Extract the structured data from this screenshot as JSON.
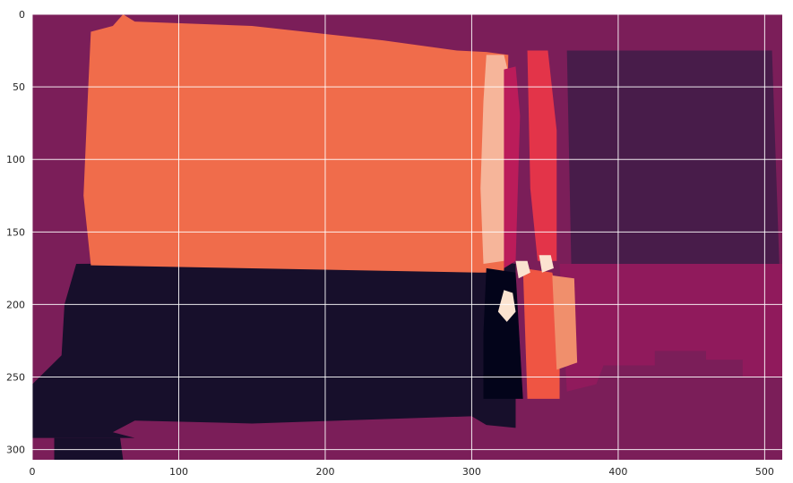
{
  "chart_data": {
    "type": "heatmap",
    "title": "",
    "xlabel": "",
    "ylabel": "",
    "image_size": [
      512,
      307
    ],
    "xlim": [
      0,
      512
    ],
    "ylim": [
      307,
      0
    ],
    "xticks": [
      0,
      100,
      200,
      300,
      400,
      500
    ],
    "yticks": [
      0,
      50,
      100,
      150,
      200,
      250,
      300
    ],
    "grid": true,
    "colormap": "rocket",
    "colors": {
      "background": "#7b1e59",
      "orange": "#f06c4b",
      "dark": "#170f2b",
      "darkest": "#03041a",
      "dark_purple": "#481c4a",
      "magenta": "#901a5c",
      "crimson": "#bb1c5a",
      "red": "#e33449",
      "orange_red": "#ef5543",
      "salmon": "#f08f6c",
      "peach": "#f6b59a",
      "light": "#fbe3d0"
    },
    "regions": [
      {
        "color": "background",
        "polygon": [
          [
            0,
            0
          ],
          [
            512,
            0
          ],
          [
            512,
            307
          ],
          [
            0,
            307
          ]
        ]
      },
      {
        "color": "dark_purple",
        "polygon": [
          [
            365,
            25
          ],
          [
            505,
            25
          ],
          [
            510,
            172
          ],
          [
            368,
            174
          ]
        ]
      },
      {
        "color": "magenta",
        "polygon": [
          [
            360,
            172
          ],
          [
            512,
            172
          ],
          [
            512,
            250
          ],
          [
            485,
            250
          ],
          [
            485,
            238
          ],
          [
            460,
            238
          ],
          [
            460,
            232
          ],
          [
            425,
            232
          ],
          [
            425,
            242
          ],
          [
            390,
            242
          ],
          [
            385,
            255
          ],
          [
            365,
            260
          ]
        ]
      },
      {
        "color": "dark",
        "polygon": [
          [
            30,
            172
          ],
          [
            315,
            170
          ],
          [
            330,
            172
          ],
          [
            330,
            285
          ],
          [
            310,
            283
          ],
          [
            300,
            277
          ],
          [
            150,
            282
          ],
          [
            70,
            280
          ],
          [
            55,
            288
          ],
          [
            70,
            292
          ],
          [
            0,
            292
          ],
          [
            0,
            255
          ],
          [
            20,
            235
          ],
          [
            22,
            200
          ]
        ]
      },
      {
        "color": "dark",
        "polygon": [
          [
            15,
            292
          ],
          [
            60,
            292
          ],
          [
            62,
            307
          ],
          [
            15,
            307
          ]
        ]
      },
      {
        "color": "orange",
        "polygon": [
          [
            40,
            12
          ],
          [
            55,
            8
          ],
          [
            62,
            0
          ],
          [
            70,
            5
          ],
          [
            150,
            8
          ],
          [
            240,
            18
          ],
          [
            290,
            25
          ],
          [
            310,
            26
          ],
          [
            325,
            28
          ],
          [
            322,
            178
          ],
          [
            305,
            178
          ],
          [
            40,
            173
          ],
          [
            35,
            125
          ],
          [
            38,
            55
          ]
        ]
      },
      {
        "color": "peach",
        "polygon": [
          [
            310,
            28
          ],
          [
            322,
            28
          ],
          [
            328,
            52
          ],
          [
            322,
            170
          ],
          [
            308,
            172
          ],
          [
            306,
            120
          ],
          [
            308,
            60
          ]
        ]
      },
      {
        "color": "crimson",
        "polygon": [
          [
            322,
            38
          ],
          [
            330,
            36
          ],
          [
            333,
            70
          ],
          [
            330,
            170
          ],
          [
            322,
            175
          ]
        ]
      },
      {
        "color": "red",
        "polygon": [
          [
            338,
            25
          ],
          [
            352,
            25
          ],
          [
            358,
            80
          ],
          [
            358,
            170
          ],
          [
            345,
            170
          ],
          [
            340,
            120
          ]
        ]
      },
      {
        "color": "darkest",
        "polygon": [
          [
            310,
            175
          ],
          [
            330,
            178
          ],
          [
            335,
            265
          ],
          [
            308,
            265
          ],
          [
            308,
            220
          ]
        ]
      },
      {
        "color": "orange_red",
        "polygon": [
          [
            335,
            175
          ],
          [
            355,
            178
          ],
          [
            360,
            200
          ],
          [
            360,
            265
          ],
          [
            338,
            265
          ]
        ]
      },
      {
        "color": "salmon",
        "polygon": [
          [
            355,
            180
          ],
          [
            370,
            182
          ],
          [
            372,
            240
          ],
          [
            358,
            245
          ]
        ]
      },
      {
        "color": "light",
        "polygon": [
          [
            330,
            170
          ],
          [
            338,
            170
          ],
          [
            340,
            178
          ],
          [
            332,
            182
          ]
        ]
      },
      {
        "color": "light",
        "polygon": [
          [
            322,
            190
          ],
          [
            328,
            192
          ],
          [
            330,
            205
          ],
          [
            324,
            212
          ],
          [
            318,
            205
          ]
        ]
      },
      {
        "color": "light",
        "polygon": [
          [
            346,
            166
          ],
          [
            354,
            166
          ],
          [
            356,
            175
          ],
          [
            348,
            178
          ]
        ]
      }
    ]
  }
}
